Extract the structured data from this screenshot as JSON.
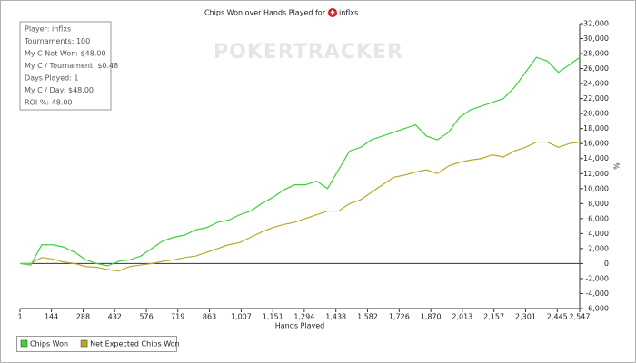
{
  "chart_data": {
    "type": "line",
    "title": "Chips Won over Hands Played for",
    "title_player": "inflxs",
    "watermark": "POKERTRACKER",
    "x_label": "Hands Played",
    "y_label": "%",
    "annotations": [
      "Player: inflxs",
      "Tournaments: 100",
      "My C Net Won: $48.00",
      "My C / Tournament: $0.48",
      "Days Played: 1",
      "My C / Day: $48.00",
      "ROI %: 48.00"
    ],
    "x": [
      1,
      50,
      100,
      150,
      200,
      250,
      300,
      350,
      400,
      450,
      500,
      550,
      600,
      650,
      700,
      750,
      800,
      850,
      900,
      950,
      1000,
      1050,
      1100,
      1150,
      1200,
      1250,
      1300,
      1350,
      1400,
      1450,
      1500,
      1550,
      1600,
      1650,
      1700,
      1750,
      1800,
      1850,
      1900,
      1950,
      2000,
      2050,
      2100,
      2150,
      2200,
      2250,
      2300,
      2350,
      2400,
      2450,
      2500,
      2547
    ],
    "series": [
      {
        "name": "Chips Won",
        "color": "#3cd23c",
        "values": [
          0,
          -200,
          2500,
          2500,
          2200,
          1500,
          500,
          0,
          -300,
          300,
          500,
          1000,
          2000,
          3000,
          3500,
          3800,
          4500,
          4800,
          5500,
          5800,
          6500,
          7000,
          8000,
          8800,
          9800,
          10500,
          10500,
          11000,
          10000,
          12500,
          15000,
          15500,
          16500,
          17000,
          17500,
          18000,
          18500,
          17000,
          16500,
          17500,
          19500,
          20500,
          21000,
          21500,
          22000,
          23500,
          25500,
          27500,
          27000,
          25500,
          26500,
          27500
        ]
      },
      {
        "name": "Net Expected Chips Won",
        "color": "#b8a82a",
        "values": [
          0,
          0,
          800,
          600,
          200,
          0,
          -400,
          -500,
          -800,
          -1000,
          -400,
          -200,
          0,
          300,
          500,
          800,
          1000,
          1500,
          2000,
          2500,
          2800,
          3500,
          4200,
          4800,
          5200,
          5500,
          6000,
          6500,
          7000,
          7000,
          8000,
          8500,
          9500,
          10500,
          11500,
          11800,
          12200,
          12500,
          12000,
          13000,
          13500,
          13800,
          14000,
          14500,
          14200,
          15000,
          15500,
          16200,
          16200,
          15500,
          16000,
          16200
        ]
      }
    ],
    "xlim": [
      1,
      2547
    ],
    "xticks": [
      1,
      144,
      288,
      432,
      576,
      719,
      863,
      {
        "value": 1007,
        "label": "1,007"
      },
      {
        "value": 1151,
        "label": "1,151"
      },
      {
        "value": 1294,
        "label": "1,294"
      },
      {
        "value": 1438,
        "label": "1,438"
      },
      {
        "value": 1582,
        "label": "1,582"
      },
      {
        "value": 1726,
        "label": "1,726"
      },
      {
        "value": 1870,
        "label": "1,870"
      },
      {
        "value": 2013,
        "label": "2,013"
      },
      {
        "value": 2157,
        "label": "2,157"
      },
      {
        "value": 2301,
        "label": "2,301"
      },
      {
        "value": 2445,
        "label": "2,445"
      },
      {
        "value": 2547,
        "label": "2,547"
      }
    ],
    "ylim": [
      -6000,
      32000
    ],
    "yticks": [
      {
        "value": -6000,
        "label": "-6,000"
      },
      {
        "value": -4000,
        "label": "-4,000"
      },
      {
        "value": -2000,
        "label": "-2,000"
      },
      0,
      {
        "value": 2000,
        "label": "2,000"
      },
      {
        "value": 4000,
        "label": "4,000"
      },
      {
        "value": 6000,
        "label": "6,000"
      },
      {
        "value": 8000,
        "label": "8,000"
      },
      {
        "value": 10000,
        "label": "10,000"
      },
      {
        "value": 12000,
        "label": "12,000"
      },
      {
        "value": 14000,
        "label": "14,000"
      },
      {
        "value": 16000,
        "label": "16,000"
      },
      {
        "value": 18000,
        "label": "18,000"
      },
      {
        "value": 20000,
        "label": "20,000"
      },
      {
        "value": 22000,
        "label": "22,000"
      },
      {
        "value": 24000,
        "label": "24,000"
      },
      {
        "value": 26000,
        "label": "26,000"
      },
      {
        "value": 28000,
        "label": "28,000"
      },
      {
        "value": 30000,
        "label": "30,000"
      },
      {
        "value": 32000,
        "label": "32,000"
      }
    ],
    "grid": false
  }
}
